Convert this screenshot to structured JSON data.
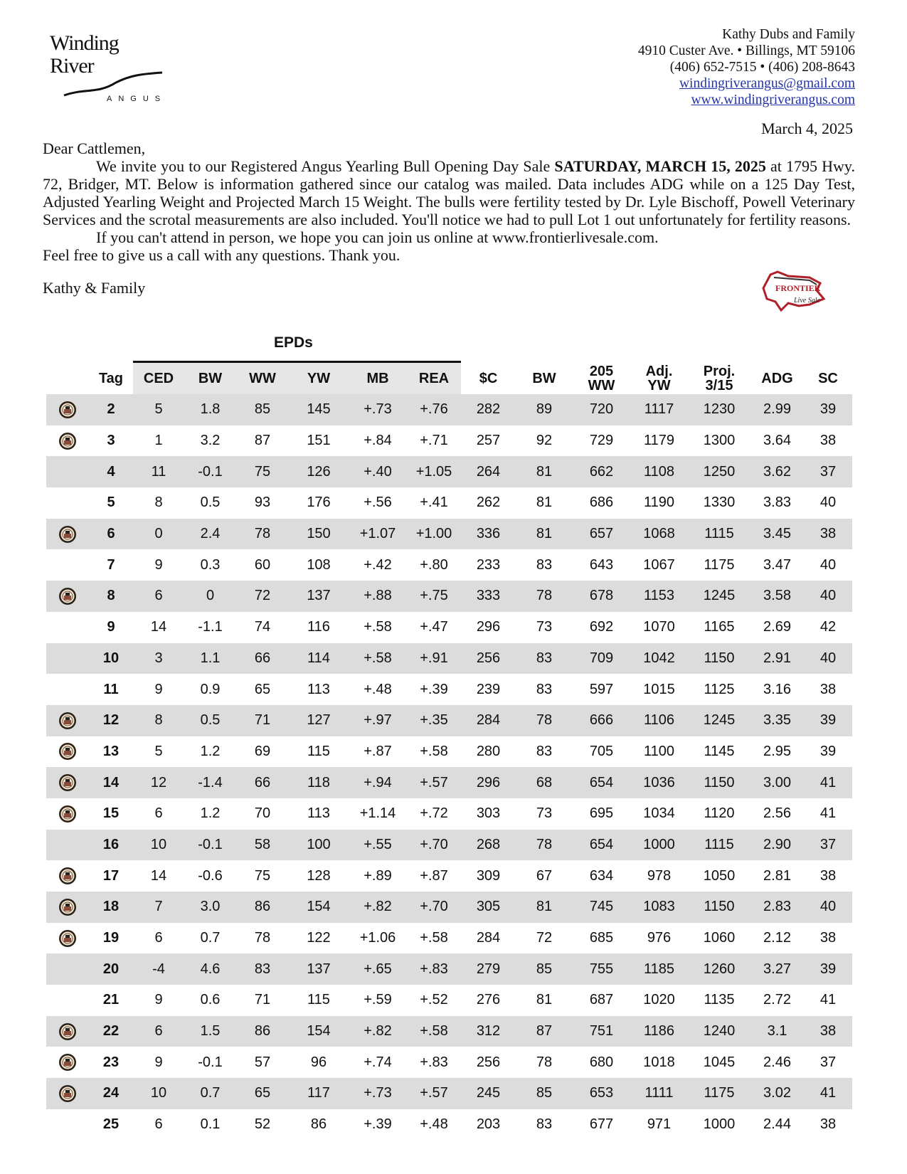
{
  "logo": {
    "text_line1": "Winding",
    "text_line2": "River",
    "text_line3": "ANGUS"
  },
  "contact": {
    "name": "Kathy Dubs and Family",
    "address": "4910 Custer Ave.  •  Billings, MT  59106",
    "phones": "(406) 652-7515  •  (406) 208-8643",
    "email": "windingriverangus@gmail.com",
    "website": "www.windingriverangus.com"
  },
  "date": "March 4, 2025",
  "letter": {
    "salutation": "Dear Cattlemen,",
    "p1_start": "We invite you to our Registered Angus Yearling Bull Opening Day Sale ",
    "p1_bold": "SATURDAY, MARCH 15, 2025",
    "p1_rest": " at 1795 Hwy. 72, Bridger, MT.  Below is information gathered since our catalog was mailed. Data includes ADG while on a 125 Day Test, Adjusted Yearling Weight and Projected March 15 Weight.  The bulls were fertility tested by Dr. Lyle Bischoff, Powell Veterinary Services and the scrotal measurements are also included.  You'll notice we had to pull Lot 1 out unfortunately for fertility reasons.",
    "p2": "If you can't attend in person, we hope you can join us online at www.frontierlivesale.com.",
    "p3": "Feel free to give us a call with any questions.  Thank you.",
    "signature": "Kathy & Family"
  },
  "frontier_logo": {
    "text": "FRONTIER Live Sale",
    "color": "#b0202a"
  },
  "table": {
    "group_header": "EPDs",
    "columns": [
      "",
      "Tag",
      "CED",
      "BW",
      "WW",
      "YW",
      "MB",
      "REA",
      "$C",
      "BW",
      "205 WW",
      "Adj. YW",
      "Proj. 3/15",
      "ADG",
      "SC"
    ],
    "rows": [
      {
        "seal": true,
        "cells": [
          "2",
          "5",
          "1.8",
          "85",
          "145",
          "+.73",
          "+.76",
          "282",
          "89",
          "720",
          "1117",
          "1230",
          "2.99",
          "39"
        ]
      },
      {
        "seal": true,
        "cells": [
          "3",
          "1",
          "3.2",
          "87",
          "151",
          "+.84",
          "+.71",
          "257",
          "92",
          "729",
          "1179",
          "1300",
          "3.64",
          "38"
        ]
      },
      {
        "seal": false,
        "cells": [
          "4",
          "11",
          "-0.1",
          "75",
          "126",
          "+.40",
          "+1.05",
          "264",
          "81",
          "662",
          "1108",
          "1250",
          "3.62",
          "37"
        ]
      },
      {
        "seal": false,
        "cells": [
          "5",
          "8",
          "0.5",
          "93",
          "176",
          "+.56",
          "+.41",
          "262",
          "81",
          "686",
          "1190",
          "1330",
          "3.83",
          "40"
        ]
      },
      {
        "seal": true,
        "cells": [
          "6",
          "0",
          "2.4",
          "78",
          "150",
          "+1.07",
          "+1.00",
          "336",
          "81",
          "657",
          "1068",
          "1115",
          "3.45",
          "38"
        ]
      },
      {
        "seal": false,
        "cells": [
          "7",
          "9",
          "0.3",
          "60",
          "108",
          "+.42",
          "+.80",
          "233",
          "83",
          "643",
          "1067",
          "1175",
          "3.47",
          "40"
        ]
      },
      {
        "seal": true,
        "cells": [
          "8",
          "6",
          "0",
          "72",
          "137",
          "+.88",
          "+.75",
          "333",
          "78",
          "678",
          "1153",
          "1245",
          "3.58",
          "40"
        ]
      },
      {
        "seal": false,
        "cells": [
          "9",
          "14",
          "-1.1",
          "74",
          "116",
          "+.58",
          "+.47",
          "296",
          "73",
          "692",
          "1070",
          "1165",
          "2.69",
          "42"
        ]
      },
      {
        "seal": false,
        "cells": [
          "10",
          "3",
          "1.1",
          "66",
          "114",
          "+.58",
          "+.91",
          "256",
          "83",
          "709",
          "1042",
          "1150",
          "2.91",
          "40"
        ]
      },
      {
        "seal": false,
        "cells": [
          "11",
          "9",
          "0.9",
          "65",
          "113",
          "+.48",
          "+.39",
          "239",
          "83",
          "597",
          "1015",
          "1125",
          "3.16",
          "38"
        ]
      },
      {
        "seal": true,
        "cells": [
          "12",
          "8",
          "0.5",
          "71",
          "127",
          "+.97",
          "+.35",
          "284",
          "78",
          "666",
          "1106",
          "1245",
          "3.35",
          "39"
        ]
      },
      {
        "seal": true,
        "cells": [
          "13",
          "5",
          "1.2",
          "69",
          "115",
          "+.87",
          "+.58",
          "280",
          "83",
          "705",
          "1100",
          "1145",
          "2.95",
          "39"
        ]
      },
      {
        "seal": true,
        "cells": [
          "14",
          "12",
          "-1.4",
          "66",
          "118",
          "+.94",
          "+.57",
          "296",
          "68",
          "654",
          "1036",
          "1150",
          "3.00",
          "41"
        ]
      },
      {
        "seal": true,
        "cells": [
          "15",
          "6",
          "1.2",
          "70",
          "113",
          "+1.14",
          "+.72",
          "303",
          "73",
          "695",
          "1034",
          "1120",
          "2.56",
          "41"
        ]
      },
      {
        "seal": false,
        "cells": [
          "16",
          "10",
          "-0.1",
          "58",
          "100",
          "+.55",
          "+.70",
          "268",
          "78",
          "654",
          "1000",
          "1115",
          "2.90",
          "37"
        ]
      },
      {
        "seal": true,
        "cells": [
          "17",
          "14",
          "-0.6",
          "75",
          "128",
          "+.89",
          "+.87",
          "309",
          "67",
          "634",
          "978",
          "1050",
          "2.81",
          "38"
        ]
      },
      {
        "seal": true,
        "cells": [
          "18",
          "7",
          "3.0",
          "86",
          "154",
          "+.82",
          "+.70",
          "305",
          "81",
          "745",
          "1083",
          "1150",
          "2.83",
          "40"
        ]
      },
      {
        "seal": true,
        "cells": [
          "19",
          "6",
          "0.7",
          "78",
          "122",
          "+1.06",
          "+.58",
          "284",
          "72",
          "685",
          "976",
          "1060",
          "2.12",
          "38"
        ]
      },
      {
        "seal": false,
        "cells": [
          "20",
          "-4",
          "4.6",
          "83",
          "137",
          "+.65",
          "+.83",
          "279",
          "85",
          "755",
          "1185",
          "1260",
          "3.27",
          "39"
        ]
      },
      {
        "seal": false,
        "cells": [
          "21",
          "9",
          "0.6",
          "71",
          "115",
          "+.59",
          "+.52",
          "276",
          "81",
          "687",
          "1020",
          "1135",
          "2.72",
          "41"
        ]
      },
      {
        "seal": true,
        "cells": [
          "22",
          "6",
          "1.5",
          "86",
          "154",
          "+.82",
          "+.58",
          "312",
          "87",
          "751",
          "1186",
          "1240",
          "3.1",
          "38"
        ]
      },
      {
        "seal": true,
        "cells": [
          "23",
          "9",
          "-0.1",
          "57",
          "96",
          "+.74",
          "+.83",
          "256",
          "78",
          "680",
          "1018",
          "1045",
          "2.46",
          "37"
        ]
      },
      {
        "seal": true,
        "cells": [
          "24",
          "10",
          "0.7",
          "65",
          "117",
          "+.73",
          "+.57",
          "245",
          "85",
          "653",
          "1111",
          "1175",
          "3.02",
          "41"
        ]
      },
      {
        "seal": false,
        "cells": [
          "25",
          "6",
          "0.1",
          "52",
          "86",
          "+.39",
          "+.48",
          "203",
          "83",
          "677",
          "971",
          "1000",
          "2.44",
          "38"
        ]
      }
    ]
  }
}
